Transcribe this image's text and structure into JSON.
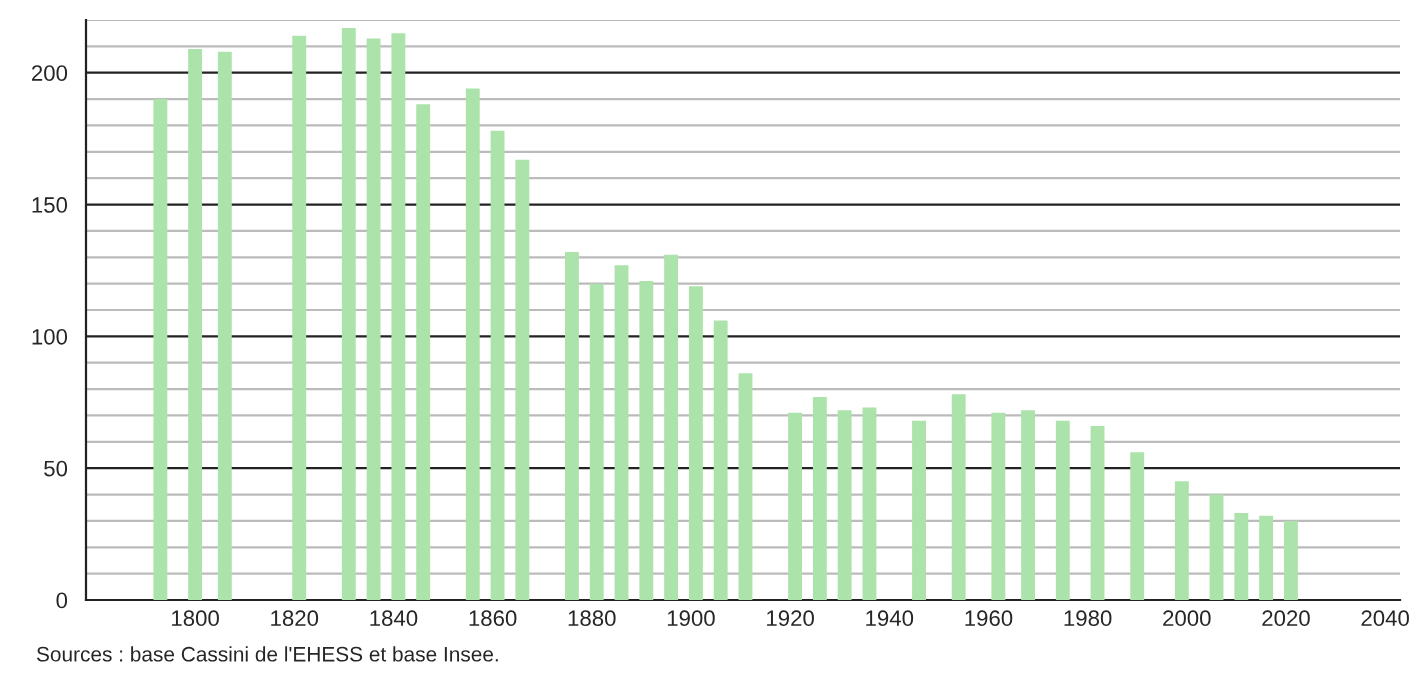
{
  "chart_data": {
    "type": "bar",
    "x": [
      1793,
      1800,
      1806,
      1821,
      1831,
      1836,
      1841,
      1846,
      1856,
      1861,
      1866,
      1876,
      1881,
      1886,
      1891,
      1896,
      1901,
      1906,
      1911,
      1921,
      1926,
      1931,
      1936,
      1946,
      1954,
      1962,
      1968,
      1975,
      1982,
      1990,
      1999,
      2006,
      2011,
      2016,
      2021
    ],
    "values": [
      190,
      209,
      208,
      214,
      217,
      213,
      215,
      188,
      194,
      178,
      167,
      132,
      120,
      127,
      121,
      131,
      119,
      106,
      86,
      71,
      77,
      72,
      73,
      68,
      78,
      71,
      72,
      68,
      66,
      56,
      45,
      40,
      33,
      32,
      30
    ],
    "color": "#abe3ab",
    "xlim": [
      1778,
      2043
    ],
    "xticks": [
      1800,
      1820,
      1840,
      1860,
      1880,
      1900,
      1920,
      1940,
      1960,
      1980,
      2000,
      2020,
      2040
    ],
    "ylim": [
      0,
      220
    ],
    "yticks": [
      0,
      {
        "value": 10,
        "label": null
      },
      {
        "value": 20,
        "label": null
      },
      {
        "value": 30,
        "label": null
      },
      {
        "value": 40,
        "label": null
      },
      50,
      {
        "value": 60,
        "label": null
      },
      {
        "value": 70,
        "label": null
      },
      {
        "value": 80,
        "label": null
      },
      {
        "value": 90,
        "label": null
      },
      100,
      {
        "value": 110,
        "label": null
      },
      {
        "value": 120,
        "label": null
      },
      {
        "value": 130,
        "label": null
      },
      {
        "value": 140,
        "label": null
      },
      150,
      {
        "value": 160,
        "label": null
      },
      {
        "value": 170,
        "label": null
      },
      {
        "value": 180,
        "label": null
      },
      {
        "value": 190,
        "label": null
      },
      200,
      {
        "value": 210,
        "label": null
      },
      {
        "value": 220,
        "label": null
      }
    ],
    "grid": "y",
    "annotations": [
      "Sources : base Cassini de l'EHESS et base Insee."
    ]
  }
}
